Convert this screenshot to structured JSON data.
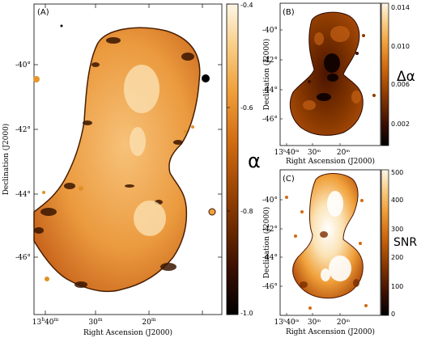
{
  "figure": {
    "panels": [
      {
        "id": "A",
        "tag": "(A)",
        "xlabel": "Right Ascension (J2000)",
        "ylabel": "Declination (J2000)",
        "xticks": [
          {
            "main": "13",
            "sup1": "h",
            "rest": "40",
            "sup2": "m"
          },
          {
            "main": "30",
            "sup1": "",
            "rest": "",
            "sup2": "m"
          },
          {
            "main": "20",
            "sup1": "",
            "rest": "",
            "sup2": "m"
          }
        ],
        "yticks": [
          "-40°",
          "-42°",
          "-44°",
          "-46°"
        ],
        "colorbar": {
          "quantity": "α",
          "ticks": [
            "-0.4",
            "-0.6",
            "-0.8",
            "-1.0"
          ],
          "range": [
            -1.0,
            -0.4
          ]
        }
      },
      {
        "id": "B",
        "tag": "(B)",
        "xlabel": "Right Ascension (J2000)",
        "ylabel": "Declination (J2000)",
        "xticks": [
          {
            "main": "13",
            "sup1": "h",
            "rest": "40",
            "sup2": "m"
          },
          {
            "main": "30",
            "sup1": "",
            "rest": "",
            "sup2": "m"
          },
          {
            "main": "20",
            "sup1": "",
            "rest": "",
            "sup2": "m"
          }
        ],
        "yticks": [
          "-40°",
          "-42°",
          "-44°",
          "-46°"
        ],
        "colorbar": {
          "quantity": "Δα",
          "ticks": [
            "0.014",
            "0.010",
            "0.006",
            "0.002"
          ],
          "range": [
            0.0,
            0.015
          ]
        }
      },
      {
        "id": "C",
        "tag": "(C)",
        "xlabel": "Right Ascension (J2000)",
        "ylabel": "Declination (J2000)",
        "xticks": [
          {
            "main": "13",
            "sup1": "h",
            "rest": "40",
            "sup2": "m"
          },
          {
            "main": "30",
            "sup1": "",
            "rest": "",
            "sup2": "m"
          },
          {
            "main": "20",
            "sup1": "",
            "rest": "",
            "sup2": "m"
          }
        ],
        "yticks": [
          "-40°",
          "-42°",
          "-44°",
          "-46°"
        ],
        "colorbar": {
          "quantity": "SNR",
          "ticks": [
            "500",
            "400",
            "300",
            "200",
            "100",
            "0"
          ],
          "range": [
            0,
            500
          ]
        }
      }
    ],
    "colormap": [
      "#000000",
      "#3b0f00",
      "#8a3a00",
      "#d06a10",
      "#f0a03a",
      "#f9cf8a",
      "#fff6e6"
    ]
  }
}
